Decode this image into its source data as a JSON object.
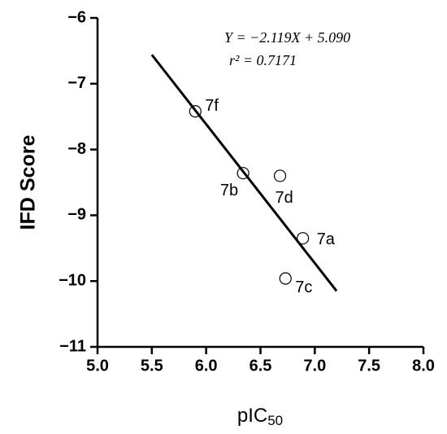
{
  "chart_data": {
    "type": "scatter",
    "x_label": {
      "text": "pIC",
      "subscript": "50"
    },
    "y_label": "IFD Score",
    "annotations": [
      "Y = −2.119X + 5.090",
      "r² = 0.7171"
    ],
    "series": [
      {
        "name": null,
        "color": "#000000",
        "labels": [
          "7f",
          "7b",
          "7d",
          "7a",
          "7c"
        ],
        "x": [
          5.9,
          6.34,
          6.68,
          6.89,
          6.73
        ],
        "values": [
          -7.42,
          -8.36,
          -8.4,
          -9.35,
          -9.96
        ]
      }
    ],
    "fit_line": {
      "color": "#000000",
      "x": [
        5.5,
        7.2
      ],
      "values": [
        -6.56,
        -10.15
      ]
    },
    "xlim": [
      5.0,
      8.0
    ],
    "xticks": [
      {
        "value": 5,
        "label": "5.0"
      },
      {
        "value": 5.5,
        "label": "5.5"
      },
      {
        "value": 6,
        "label": "6.0"
      },
      {
        "value": 6.5,
        "label": "6.5"
      },
      {
        "value": 7,
        "label": "7.0"
      },
      {
        "value": 7.5,
        "label": "7.5"
      },
      {
        "value": 8,
        "label": "8.0"
      }
    ],
    "ylim": [
      -11,
      -6
    ],
    "yticks": [
      {
        "value": -6,
        "label": "−6"
      },
      {
        "value": -7,
        "label": "−7"
      },
      {
        "value": -8,
        "label": "−8"
      },
      {
        "value": -9,
        "label": "−9"
      },
      {
        "value": -10,
        "label": "−10"
      },
      {
        "value": -11,
        "label": "−11"
      }
    ]
  }
}
